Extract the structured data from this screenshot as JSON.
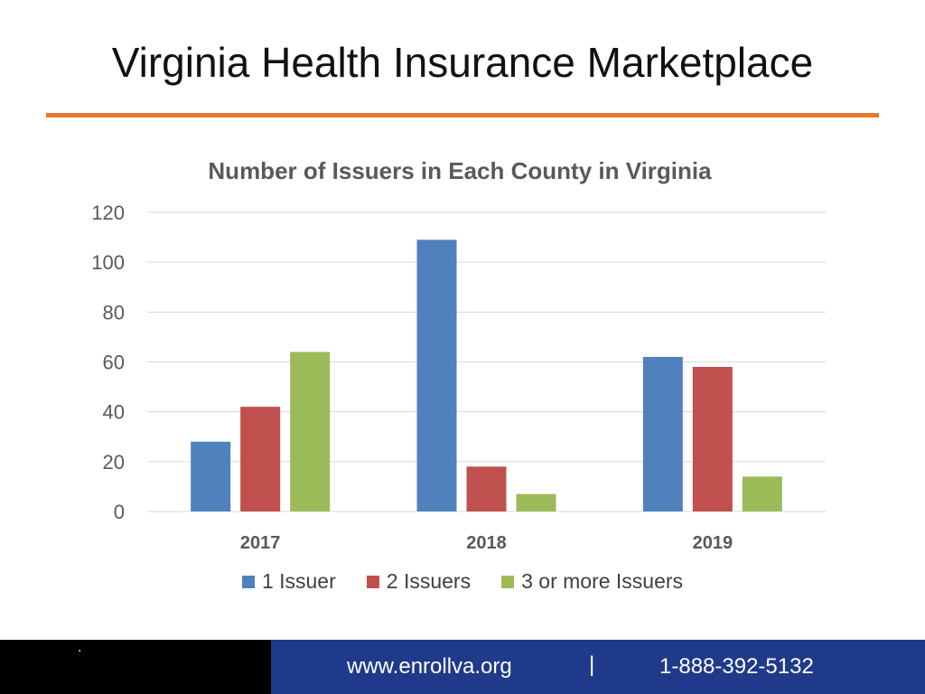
{
  "slide": {
    "title": "Virginia Health Insurance Marketplace"
  },
  "colors": {
    "accent_rule": "#e07a2d",
    "footer_left": "#000000",
    "footer_right": "#1f3a8a"
  },
  "footer": {
    "dot": ".",
    "url": "www.enrollva.org",
    "separator": "|",
    "phone": "1-888-392-5132"
  },
  "chart_data": {
    "type": "bar",
    "title": "Number of Issuers in Each County in Virginia",
    "xlabel": "",
    "ylabel": "",
    "categories": [
      "2017",
      "2018",
      "2019"
    ],
    "ylim": [
      0,
      120
    ],
    "yticks": [
      "0",
      "20",
      "40",
      "60",
      "80",
      "100",
      "120"
    ],
    "grid": true,
    "legend_position": "bottom",
    "series": [
      {
        "name": "1 Issuer",
        "color": "#4f81bd",
        "values": [
          28,
          109,
          62
        ]
      },
      {
        "name": "2 Issuers",
        "color": "#c0504d",
        "values": [
          42,
          18,
          58
        ]
      },
      {
        "name": "3 or more Issuers",
        "color": "#9bbb59",
        "values": [
          64,
          7,
          14
        ]
      }
    ]
  }
}
